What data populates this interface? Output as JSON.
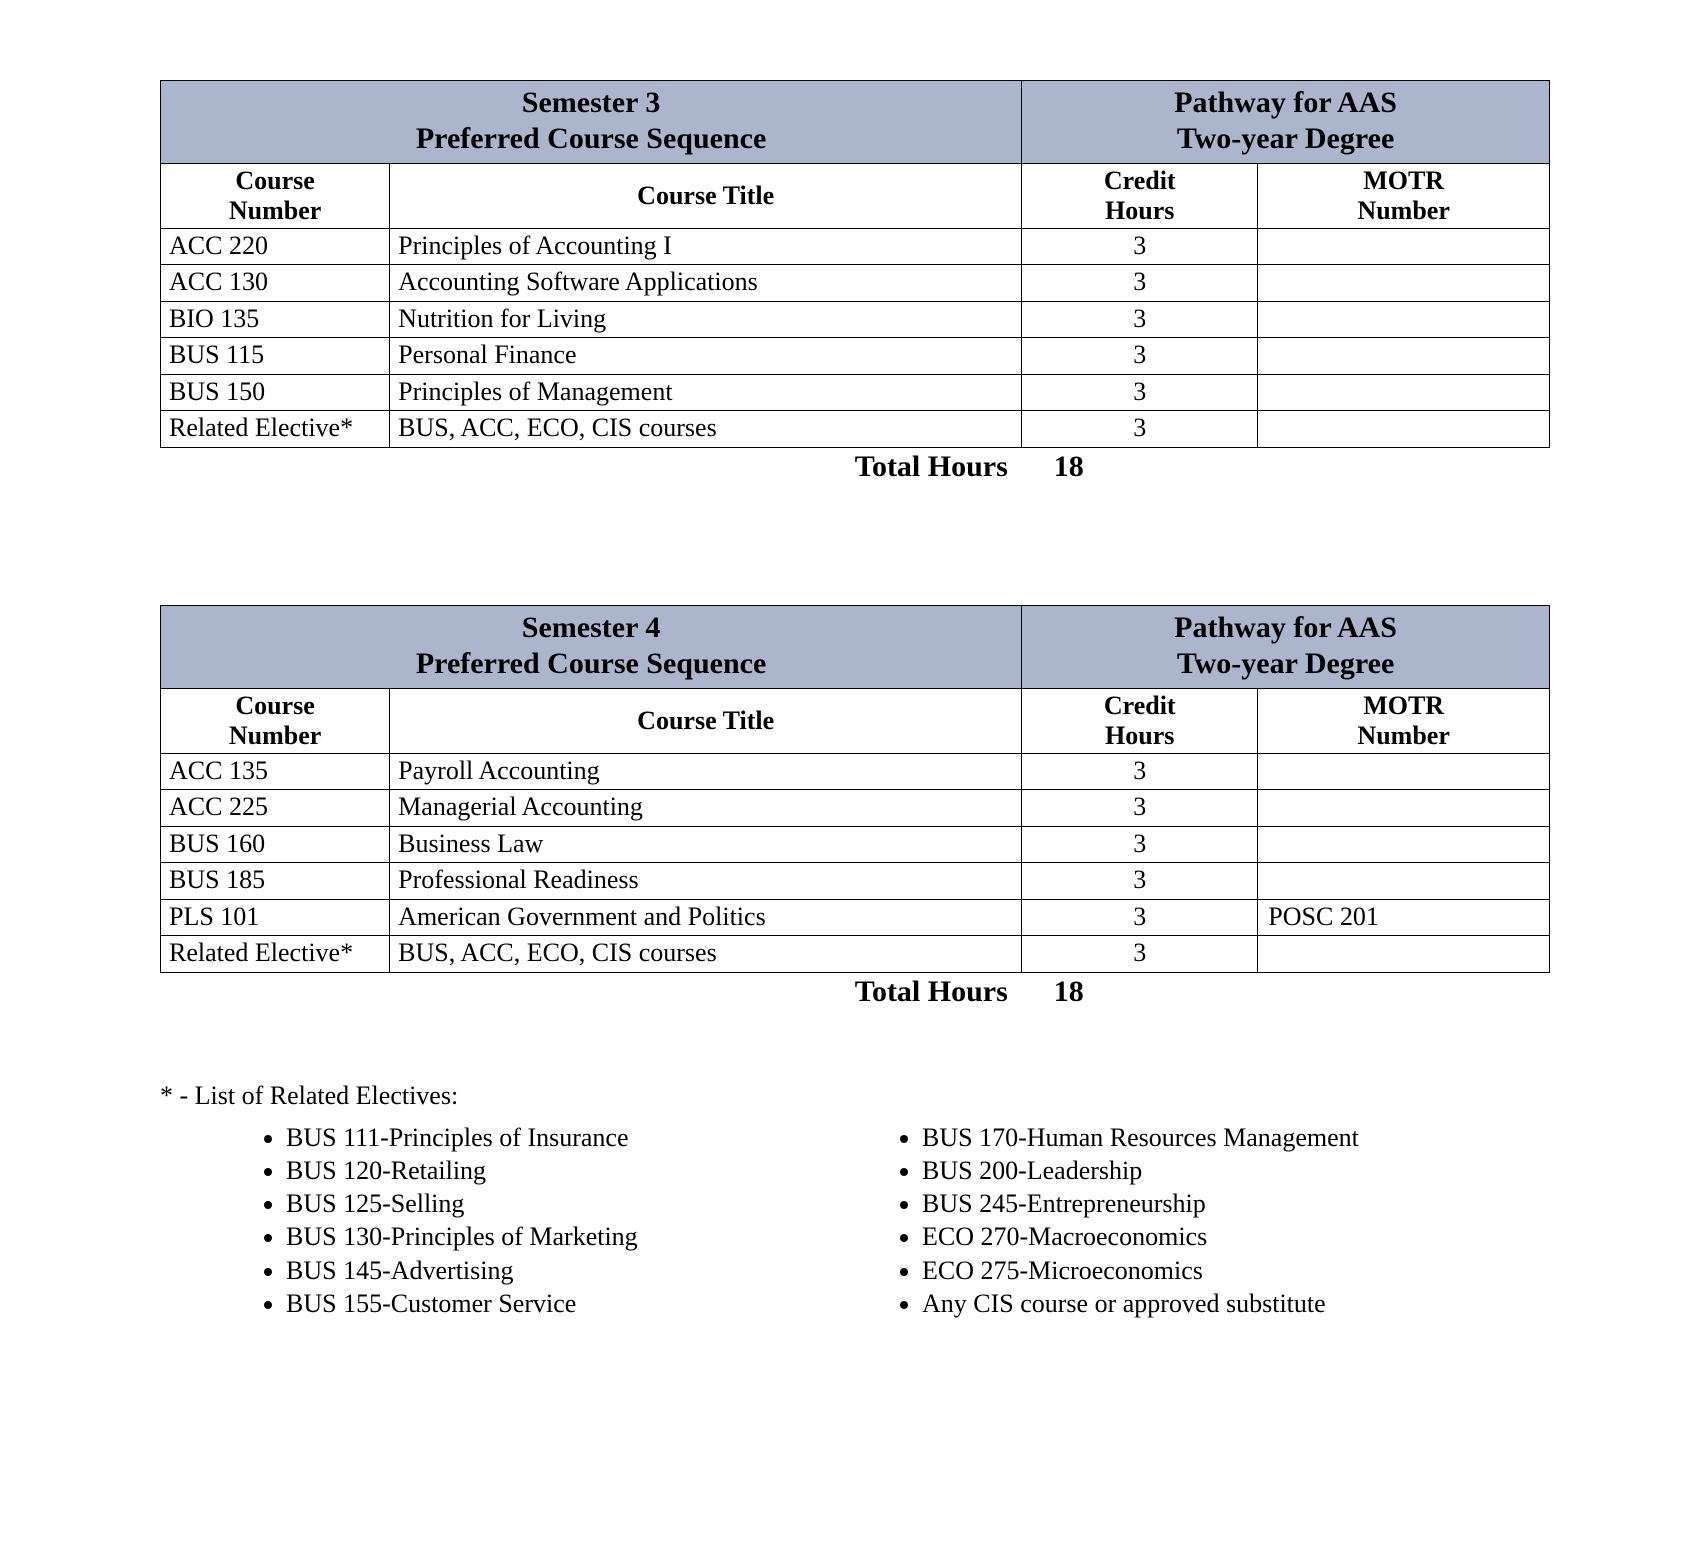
{
  "colors": {
    "header_bg": "#abb6cd",
    "border": "#000000",
    "text": "#000000",
    "page_bg": "#ffffff"
  },
  "typography": {
    "base_font": "Times New Roman",
    "base_fontsize_pt": 20,
    "header_fontsize_pt": 23,
    "bold_weight": "bold"
  },
  "layout": {
    "col_widths_pct": [
      16.5,
      45.5,
      17,
      21
    ]
  },
  "columns": {
    "course_number": "Course\nNumber",
    "course_title": "Course Title",
    "credit_hours": "Credit\nHours",
    "motr_number": "MOTR\nNumber"
  },
  "semesters": [
    {
      "left_title": "Semester 3\nPreferred Course Sequence",
      "right_title": "Pathway for AAS\nTwo-year Degree",
      "rows": [
        {
          "num": "ACC 220",
          "title": "Principles of Accounting I",
          "credit": "3",
          "motr": ""
        },
        {
          "num": "ACC 130",
          "title": "Accounting Software Applications",
          "credit": "3",
          "motr": ""
        },
        {
          "num": "BIO 135",
          "title": "Nutrition for Living",
          "credit": "3",
          "motr": ""
        },
        {
          "num": "BUS 115",
          "title": "Personal Finance",
          "credit": "3",
          "motr": ""
        },
        {
          "num": "BUS 150",
          "title": "Principles of Management",
          "credit": "3",
          "motr": ""
        },
        {
          "num": "Related Elective*",
          "title": "BUS, ACC, ECO, CIS courses",
          "credit": "3",
          "motr": ""
        }
      ],
      "total_label": "Total Hours",
      "total_value": "18"
    },
    {
      "left_title": "Semester 4\nPreferred Course Sequence",
      "right_title": "Pathway for AAS\nTwo-year Degree",
      "rows": [
        {
          "num": "ACC 135",
          "title": "Payroll Accounting",
          "credit": "3",
          "motr": ""
        },
        {
          "num": "ACC 225",
          "title": "Managerial Accounting",
          "credit": "3",
          "motr": ""
        },
        {
          "num": "BUS 160",
          "title": "Business Law",
          "credit": "3",
          "motr": ""
        },
        {
          "num": "BUS 185",
          "title": "Professional Readiness",
          "credit": "3",
          "motr": ""
        },
        {
          "num": "PLS 101",
          "title": "American Government and Politics",
          "credit": "3",
          "motr": "POSC 201"
        },
        {
          "num": "Related Elective*",
          "title": "BUS, ACC, ECO, CIS courses",
          "credit": "3",
          "motr": ""
        }
      ],
      "total_label": "Total Hours",
      "total_value": "18"
    }
  ],
  "footnote": "* - List of Related Electives:",
  "electives_left": [
    "BUS 111-Principles of Insurance",
    "BUS 120-Retailing",
    "BUS 125-Selling",
    "BUS 130-Principles of Marketing",
    "BUS 145-Advertising",
    "BUS 155-Customer Service"
  ],
  "electives_right": [
    "BUS 170-Human Resources Management",
    "BUS 200-Leadership",
    "BUS 245-Entrepreneurship",
    "ECO 270-Macroeconomics",
    "ECO 275-Microeconomics",
    "Any CIS course or approved substitute"
  ]
}
